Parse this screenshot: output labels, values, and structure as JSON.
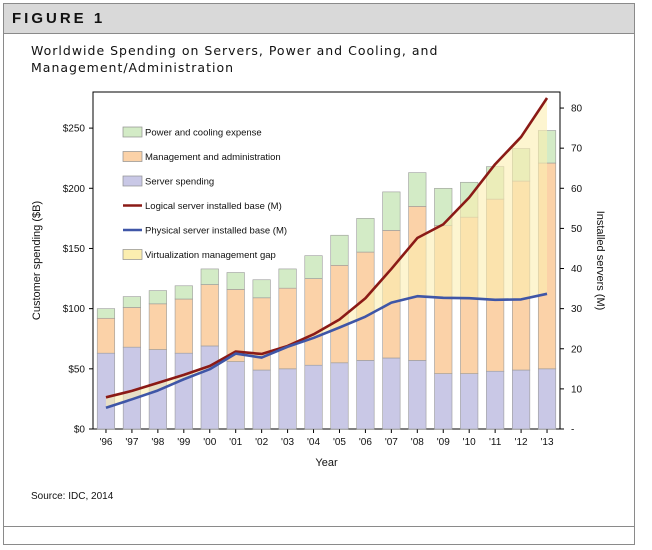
{
  "figure": {
    "label": "FIGURE 1",
    "title_line1": "Worldwide Spending on Servers, Power and Cooling, and",
    "title_line2": "Management/Administration",
    "source": "Source: IDC, 2014"
  },
  "chart_data": {
    "type": "bar",
    "stacked": true,
    "categories": [
      "'96",
      "'97",
      "'98",
      "'99",
      "'00",
      "'01",
      "'02",
      "'03",
      "'04",
      "'05",
      "'06",
      "'07",
      "'08",
      "'09",
      "'10",
      "'11",
      "'12",
      "'13"
    ],
    "xlabel": "Year",
    "ylabel": "Customer spending ($B)",
    "ylabel_right": "Installed servers (M)",
    "ylim": [
      0,
      280
    ],
    "yticks": [
      0,
      50,
      100,
      150,
      200,
      250
    ],
    "ytick_labels": [
      "$0",
      "$50",
      "$100",
      "$150",
      "$200",
      "$250"
    ],
    "y2lim": [
      0,
      84
    ],
    "y2ticks": [
      0,
      10,
      20,
      30,
      40,
      50,
      60,
      70,
      80
    ],
    "y2tick_labels": [
      "-",
      "10",
      "20",
      "30",
      "40",
      "50",
      "60",
      "70",
      "80"
    ],
    "series": [
      {
        "name": "Server spending",
        "color": "#c9c8e6",
        "values": [
          63,
          68,
          66,
          63,
          69,
          56,
          49,
          50,
          53,
          55,
          57,
          59,
          57,
          46,
          46,
          48,
          49,
          50
        ]
      },
      {
        "name": "Management and administration",
        "color": "#fbd2a8",
        "values": [
          29,
          33,
          38,
          45,
          51,
          60,
          60,
          67,
          72,
          81,
          90,
          106,
          128,
          123,
          130,
          143,
          157,
          171
        ]
      },
      {
        "name": "Power and cooling expense",
        "color": "#d3ebc6",
        "values": [
          8,
          9,
          11,
          11,
          13,
          14,
          15,
          16,
          19,
          25,
          28,
          32,
          28,
          31,
          29,
          27,
          27,
          27
        ]
      }
    ],
    "lines": [
      {
        "name": "Logical server installed base (M)",
        "color": "#8b1a16",
        "axis": "right",
        "values": [
          7.9,
          9.5,
          11.5,
          13.5,
          15.7,
          19.3,
          18.7,
          20.7,
          23.6,
          27.3,
          32.6,
          39.9,
          47.6,
          51.0,
          57.7,
          66.0,
          72.8,
          82.5
        ]
      },
      {
        "name": "Physical server installed base (M)",
        "color": "#3f56a7",
        "axis": "right",
        "values": [
          5.3,
          7.4,
          9.6,
          12.4,
          14.9,
          18.8,
          17.8,
          20.5,
          22.7,
          25.3,
          28.0,
          31.5,
          33.1,
          32.7,
          32.6,
          32.2,
          32.3,
          33.7
        ]
      }
    ],
    "area": {
      "name": "Virtualization management gap",
      "color": "#fbeeb0",
      "between": [
        "Physical server installed base (M)",
        "Logical server installed base (M)"
      ]
    },
    "legend": [
      {
        "name": "Power and cooling expense",
        "kind": "box",
        "color": "#d3ebc6"
      },
      {
        "name": "Management and administration",
        "kind": "box",
        "color": "#fbd2a8"
      },
      {
        "name": "Server spending",
        "kind": "box",
        "color": "#c9c8e6"
      },
      {
        "name": "Logical server installed base (M)",
        "kind": "line",
        "color": "#8b1a16"
      },
      {
        "name": "Physical server installed base (M)",
        "kind": "line",
        "color": "#3f56a7"
      },
      {
        "name": "Virtualization management gap",
        "kind": "box",
        "color": "#fbeeb0"
      }
    ],
    "legend_position": "top-left",
    "grid": false
  }
}
